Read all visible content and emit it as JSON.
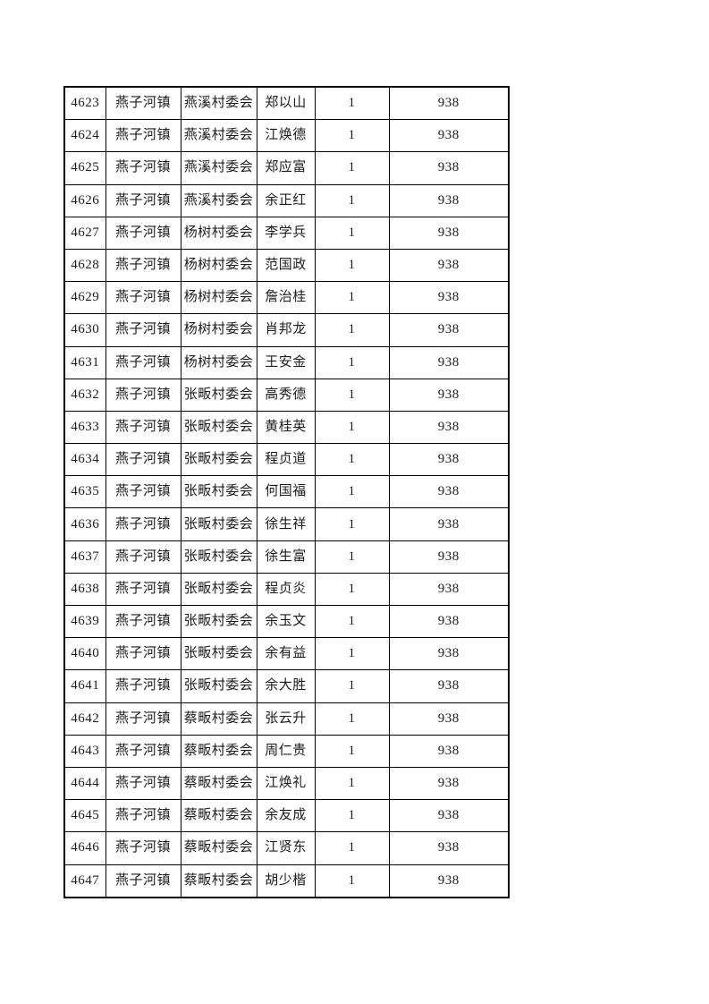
{
  "page": {
    "type": "printed-roster-table-page",
    "background_color": "#ffffff"
  },
  "colors": {
    "table_border": "#000000",
    "text": "#1c1c1c",
    "page_background": "#ffffff"
  },
  "table": {
    "column_semantics": [
      "serial-number",
      "town",
      "village-committee",
      "person-name",
      "count",
      "amount"
    ],
    "rows": [
      [
        "4623",
        "燕子河镇",
        "燕溪村委会",
        "郑以山",
        "1",
        "938"
      ],
      [
        "4624",
        "燕子河镇",
        "燕溪村委会",
        "江焕德",
        "1",
        "938"
      ],
      [
        "4625",
        "燕子河镇",
        "燕溪村委会",
        "郑应富",
        "1",
        "938"
      ],
      [
        "4626",
        "燕子河镇",
        "燕溪村委会",
        "余正红",
        "1",
        "938"
      ],
      [
        "4627",
        "燕子河镇",
        "杨树村委会",
        "李学兵",
        "1",
        "938"
      ],
      [
        "4628",
        "燕子河镇",
        "杨树村委会",
        "范国政",
        "1",
        "938"
      ],
      [
        "4629",
        "燕子河镇",
        "杨树村委会",
        "詹治桂",
        "1",
        "938"
      ],
      [
        "4630",
        "燕子河镇",
        "杨树村委会",
        "肖邦龙",
        "1",
        "938"
      ],
      [
        "4631",
        "燕子河镇",
        "杨树村委会",
        "王安金",
        "1",
        "938"
      ],
      [
        "4632",
        "燕子河镇",
        "张畈村委会",
        "高秀德",
        "1",
        "938"
      ],
      [
        "4633",
        "燕子河镇",
        "张畈村委会",
        "黄桂英",
        "1",
        "938"
      ],
      [
        "4634",
        "燕子河镇",
        "张畈村委会",
        "程贞道",
        "1",
        "938"
      ],
      [
        "4635",
        "燕子河镇",
        "张畈村委会",
        "何国福",
        "1",
        "938"
      ],
      [
        "4636",
        "燕子河镇",
        "张畈村委会",
        "徐生祥",
        "1",
        "938"
      ],
      [
        "4637",
        "燕子河镇",
        "张畈村委会",
        "徐生富",
        "1",
        "938"
      ],
      [
        "4638",
        "燕子河镇",
        "张畈村委会",
        "程贞炎",
        "1",
        "938"
      ],
      [
        "4639",
        "燕子河镇",
        "张畈村委会",
        "余玉文",
        "1",
        "938"
      ],
      [
        "4640",
        "燕子河镇",
        "张畈村委会",
        "余有益",
        "1",
        "938"
      ],
      [
        "4641",
        "燕子河镇",
        "张畈村委会",
        "余大胜",
        "1",
        "938"
      ],
      [
        "4642",
        "燕子河镇",
        "蔡畈村委会",
        "张云升",
        "1",
        "938"
      ],
      [
        "4643",
        "燕子河镇",
        "蔡畈村委会",
        "周仁贵",
        "1",
        "938"
      ],
      [
        "4644",
        "燕子河镇",
        "蔡畈村委会",
        "江焕礼",
        "1",
        "938"
      ],
      [
        "4645",
        "燕子河镇",
        "蔡畈村委会",
        "余友成",
        "1",
        "938"
      ],
      [
        "4646",
        "燕子河镇",
        "蔡畈村委会",
        "江贤东",
        "1",
        "938"
      ],
      [
        "4647",
        "燕子河镇",
        "蔡畈村委会",
        "胡少楷",
        "1",
        "938"
      ]
    ]
  }
}
